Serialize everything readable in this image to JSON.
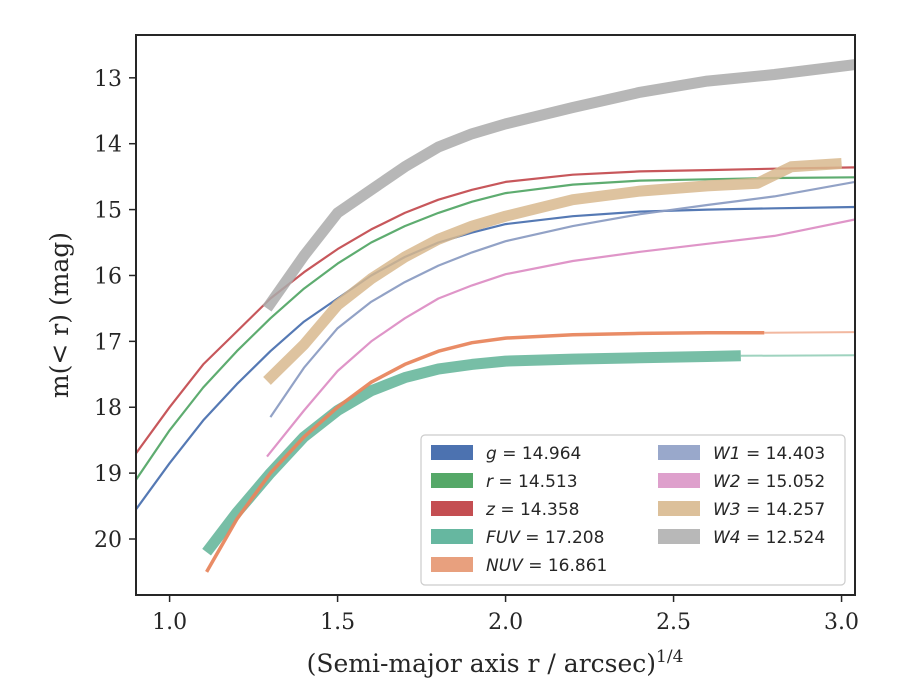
{
  "chart_data": {
    "type": "line",
    "xlabel": "(Semi-major axis r / arcsec)",
    "xlabel_var": "r",
    "xlabel_exp": "1/4",
    "ylabel": "m(< r) (mag)",
    "xlim": [
      0.9,
      3.04
    ],
    "ylim": [
      20.85,
      12.35
    ],
    "y_inverted": true,
    "xticks": [
      "1.0",
      "1.5",
      "2.0",
      "2.5",
      "3.0"
    ],
    "yticks": [
      "13",
      "14",
      "15",
      "16",
      "17",
      "18",
      "19",
      "20"
    ],
    "legend_position": "lower-right",
    "grid": false,
    "series": [
      {
        "id": "g",
        "label": "g = 14.964",
        "color": "#4c72b0",
        "points": [
          [
            0.9,
            19.55
          ],
          [
            1.0,
            18.85
          ],
          [
            1.1,
            18.2
          ],
          [
            1.2,
            17.65
          ],
          [
            1.3,
            17.15
          ],
          [
            1.4,
            16.7
          ],
          [
            1.5,
            16.35
          ],
          [
            1.6,
            16.0
          ],
          [
            1.7,
            15.72
          ],
          [
            1.8,
            15.5
          ],
          [
            1.9,
            15.35
          ],
          [
            2.0,
            15.22
          ],
          [
            2.2,
            15.1
          ],
          [
            2.4,
            15.03
          ],
          [
            2.6,
            15.0
          ],
          [
            2.8,
            14.98
          ],
          [
            3.04,
            14.96
          ]
        ],
        "fit": [],
        "fit_color": "",
        "width": 2.2
      },
      {
        "id": "r",
        "label": "r = 14.513",
        "color": "#55a868",
        "points": [
          [
            0.9,
            19.1
          ],
          [
            1.0,
            18.35
          ],
          [
            1.1,
            17.7
          ],
          [
            1.2,
            17.15
          ],
          [
            1.3,
            16.65
          ],
          [
            1.4,
            16.2
          ],
          [
            1.5,
            15.82
          ],
          [
            1.6,
            15.5
          ],
          [
            1.7,
            15.25
          ],
          [
            1.8,
            15.05
          ],
          [
            1.9,
            14.88
          ],
          [
            2.0,
            14.75
          ],
          [
            2.2,
            14.62
          ],
          [
            2.4,
            14.56
          ],
          [
            2.6,
            14.54
          ],
          [
            2.8,
            14.52
          ],
          [
            3.04,
            14.51
          ]
        ],
        "fit": [],
        "fit_color": "",
        "width": 2.2
      },
      {
        "id": "z",
        "label": "z = 14.358",
        "color": "#c44e52",
        "points": [
          [
            0.9,
            18.7
          ],
          [
            1.0,
            18.0
          ],
          [
            1.1,
            17.35
          ],
          [
            1.2,
            16.85
          ],
          [
            1.3,
            16.35
          ],
          [
            1.4,
            15.95
          ],
          [
            1.5,
            15.6
          ],
          [
            1.6,
            15.3
          ],
          [
            1.7,
            15.05
          ],
          [
            1.8,
            14.85
          ],
          [
            1.9,
            14.7
          ],
          [
            2.0,
            14.58
          ],
          [
            2.2,
            14.47
          ],
          [
            2.4,
            14.42
          ],
          [
            2.6,
            14.4
          ],
          [
            2.8,
            14.38
          ],
          [
            3.04,
            14.36
          ]
        ],
        "fit": [],
        "fit_color": "",
        "width": 2.2
      },
      {
        "id": "FUV",
        "label": "FUV = 17.208",
        "color": "#5fb396",
        "points": [
          [
            1.11,
            20.2
          ],
          [
            1.2,
            19.6
          ],
          [
            1.3,
            19.0
          ],
          [
            1.4,
            18.45
          ],
          [
            1.5,
            18.05
          ],
          [
            1.6,
            17.75
          ],
          [
            1.7,
            17.55
          ],
          [
            1.8,
            17.42
          ],
          [
            1.9,
            17.35
          ],
          [
            2.0,
            17.3
          ],
          [
            2.2,
            17.27
          ],
          [
            2.4,
            17.25
          ],
          [
            2.6,
            17.23
          ],
          [
            2.7,
            17.22
          ]
        ],
        "fit": [
          [
            2.7,
            17.22
          ],
          [
            3.04,
            17.21
          ]
        ],
        "fit_color": "#9fd3bf",
        "width": 11
      },
      {
        "id": "NUV",
        "label": "NUV = 16.861",
        "color": "#e8865e",
        "points": [
          [
            1.11,
            20.5
          ],
          [
            1.2,
            19.7
          ],
          [
            1.3,
            19.0
          ],
          [
            1.4,
            18.45
          ],
          [
            1.5,
            18.0
          ],
          [
            1.6,
            17.62
          ],
          [
            1.7,
            17.35
          ],
          [
            1.8,
            17.15
          ],
          [
            1.9,
            17.02
          ],
          [
            2.0,
            16.95
          ],
          [
            2.2,
            16.9
          ],
          [
            2.4,
            16.88
          ],
          [
            2.6,
            16.87
          ],
          [
            2.77,
            16.87
          ]
        ],
        "fit": [
          [
            2.77,
            16.87
          ],
          [
            3.04,
            16.86
          ]
        ],
        "fit_color": "#f2b8a0",
        "width": 3.5
      },
      {
        "id": "W1",
        "label": "W1 = 14.403",
        "color": "#8c9dc3",
        "points": [
          [
            1.3,
            18.15
          ],
          [
            1.4,
            17.4
          ],
          [
            1.5,
            16.8
          ],
          [
            1.6,
            16.4
          ],
          [
            1.7,
            16.1
          ],
          [
            1.8,
            15.85
          ],
          [
            1.9,
            15.65
          ],
          [
            2.0,
            15.48
          ],
          [
            2.2,
            15.25
          ],
          [
            2.4,
            15.07
          ],
          [
            2.6,
            14.93
          ],
          [
            2.8,
            14.8
          ],
          [
            3.04,
            14.58
          ]
        ],
        "fit": [],
        "fit_color": "",
        "width": 2.2
      },
      {
        "id": "W2",
        "label": "W2 = 15.052",
        "color": "#dd8fc5",
        "points": [
          [
            1.29,
            18.75
          ],
          [
            1.4,
            18.05
          ],
          [
            1.5,
            17.45
          ],
          [
            1.6,
            17.0
          ],
          [
            1.7,
            16.65
          ],
          [
            1.8,
            16.35
          ],
          [
            1.9,
            16.15
          ],
          [
            2.0,
            15.98
          ],
          [
            2.2,
            15.78
          ],
          [
            2.4,
            15.64
          ],
          [
            2.6,
            15.52
          ],
          [
            2.8,
            15.4
          ],
          [
            3.04,
            15.15
          ]
        ],
        "fit": [],
        "fit_color": "",
        "width": 2.2
      },
      {
        "id": "W3",
        "label": "W3 = 14.257",
        "color": "#d8b98e",
        "points": [
          [
            1.29,
            17.6
          ],
          [
            1.4,
            17.05
          ],
          [
            1.5,
            16.45
          ],
          [
            1.6,
            16.05
          ],
          [
            1.7,
            15.72
          ],
          [
            1.8,
            15.45
          ],
          [
            1.9,
            15.25
          ],
          [
            2.0,
            15.1
          ],
          [
            2.2,
            14.85
          ],
          [
            2.4,
            14.72
          ],
          [
            2.6,
            14.64
          ],
          [
            2.75,
            14.6
          ],
          [
            2.85,
            14.35
          ],
          [
            3.0,
            14.3
          ]
        ],
        "fit": [],
        "fit_color": "",
        "width": 11
      },
      {
        "id": "W4",
        "label": "W4 = 12.524",
        "color": "#aaaaaa",
        "points": [
          [
            1.29,
            16.5
          ],
          [
            1.4,
            15.7
          ],
          [
            1.5,
            15.05
          ],
          [
            1.6,
            14.7
          ],
          [
            1.7,
            14.35
          ],
          [
            1.8,
            14.05
          ],
          [
            1.9,
            13.85
          ],
          [
            2.0,
            13.7
          ],
          [
            2.2,
            13.45
          ],
          [
            2.4,
            13.22
          ],
          [
            2.6,
            13.05
          ],
          [
            2.8,
            12.95
          ],
          [
            3.04,
            12.8
          ]
        ],
        "fit": [],
        "fit_color": "",
        "width": 11
      }
    ],
    "legend": [
      {
        "id": "g",
        "name": "g",
        "value": " = 14.964",
        "color": "#4c72b0"
      },
      {
        "id": "r",
        "name": "r",
        "value": " = 14.513",
        "color": "#55a868"
      },
      {
        "id": "z",
        "name": "z",
        "value": " = 14.358",
        "color": "#c44e52"
      },
      {
        "id": "FUV",
        "name": "FUV",
        "value": " = 17.208",
        "color": "#66b7a0"
      },
      {
        "id": "NUV",
        "name": "NUV",
        "value": " = 16.861",
        "color": "#e8a07e"
      },
      {
        "id": "W1",
        "name": "W1",
        "value": " = 14.403",
        "color": "#99a8cb"
      },
      {
        "id": "W2",
        "name": "W2",
        "value": " = 15.052",
        "color": "#dea0cc"
      },
      {
        "id": "W3",
        "name": "W3",
        "value": " = 14.257",
        "color": "#dcc09a"
      },
      {
        "id": "W4",
        "name": "W4",
        "value": " = 12.524",
        "color": "#b8b8b8"
      }
    ]
  }
}
